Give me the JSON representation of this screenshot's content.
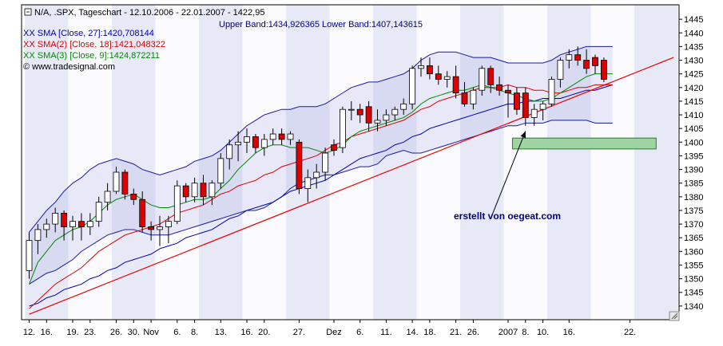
{
  "header": {
    "title": "N/A, .SPX, Tageschart - 12.10.2006 - 22.01.2007 - 1422,95",
    "bands": "Upper Band:1434,926365 Lower Band:1407,143615"
  },
  "legend": [
    {
      "label": "XX SMA [Close, 27]:1420,708144",
      "color": "#0000aa"
    },
    {
      "label": "XX SMA(2) [Close, 18]:1421,048322",
      "color": "#dd0000"
    },
    {
      "label": "XX SMA(3) [Close, 9]:1424,872211",
      "color": "#008800"
    },
    {
      "label": "© www.tradesignal.com",
      "color": "#000000"
    }
  ],
  "annotation": "erstellt von oegeat.com",
  "colors": {
    "up": "#ffffff",
    "down": "#dd0000",
    "band": "#1a1aa0",
    "sma27": "#0000aa",
    "sma18": "#dd0000",
    "sma9": "#008800",
    "trend": "#ee0000",
    "zone": "#9fd3a4"
  },
  "chart_data": {
    "type": "candlestick",
    "ylim": [
      1335,
      1450
    ],
    "y_ticks": [
      1340,
      1345,
      1350,
      1355,
      1360,
      1365,
      1370,
      1375,
      1380,
      1385,
      1390,
      1395,
      1400,
      1405,
      1410,
      1415,
      1420,
      1425,
      1430,
      1435,
      1440,
      1445
    ],
    "x_labels": [
      {
        "label": "12.",
        "i": 0
      },
      {
        "label": "16.",
        "i": 2
      },
      {
        "label": "19.",
        "i": 5
      },
      {
        "label": "23.",
        "i": 7
      },
      {
        "label": "26.",
        "i": 10
      },
      {
        "label": "30.",
        "i": 12
      },
      {
        "label": "Nov",
        "i": 14
      },
      {
        "label": "6.",
        "i": 17
      },
      {
        "label": "8.",
        "i": 19
      },
      {
        "label": "13.",
        "i": 22
      },
      {
        "label": "16.",
        "i": 25
      },
      {
        "label": "20.",
        "i": 27
      },
      {
        "label": "27.",
        "i": 31
      },
      {
        "label": "Dez",
        "i": 35
      },
      {
        "label": "6.",
        "i": 38
      },
      {
        "label": "11.",
        "i": 41
      },
      {
        "label": "14.",
        "i": 44
      },
      {
        "label": "18.",
        "i": 46
      },
      {
        "label": "21.",
        "i": 49
      },
      {
        "label": "26.",
        "i": 51
      },
      {
        "label": "2007",
        "i": 55
      },
      {
        "label": "8.",
        "i": 57
      },
      {
        "label": "10.",
        "i": 59
      },
      {
        "label": "16.",
        "i": 62
      },
      {
        "label": "22.",
        "i": 69
      }
    ],
    "candles": [
      {
        "o": 1353,
        "h": 1367,
        "l": 1350,
        "c": 1364
      },
      {
        "o": 1364,
        "h": 1370,
        "l": 1359,
        "c": 1368
      },
      {
        "o": 1368,
        "h": 1372,
        "l": 1365,
        "c": 1370
      },
      {
        "o": 1370,
        "h": 1376,
        "l": 1367,
        "c": 1374
      },
      {
        "o": 1374,
        "h": 1375,
        "l": 1364,
        "c": 1369
      },
      {
        "o": 1369,
        "h": 1373,
        "l": 1364,
        "c": 1371
      },
      {
        "o": 1371,
        "h": 1374,
        "l": 1364,
        "c": 1369
      },
      {
        "o": 1369,
        "h": 1374,
        "l": 1366,
        "c": 1371
      },
      {
        "o": 1371,
        "h": 1380,
        "l": 1369,
        "c": 1378
      },
      {
        "o": 1378,
        "h": 1385,
        "l": 1375,
        "c": 1382
      },
      {
        "o": 1382,
        "h": 1391,
        "l": 1381,
        "c": 1389
      },
      {
        "o": 1389,
        "h": 1390,
        "l": 1379,
        "c": 1381
      },
      {
        "o": 1381,
        "h": 1383,
        "l": 1377,
        "c": 1379
      },
      {
        "o": 1379,
        "h": 1382,
        "l": 1367,
        "c": 1369
      },
      {
        "o": 1369,
        "h": 1371,
        "l": 1364,
        "c": 1368
      },
      {
        "o": 1368,
        "h": 1373,
        "l": 1362,
        "c": 1369
      },
      {
        "o": 1369,
        "h": 1373,
        "l": 1363,
        "c": 1371
      },
      {
        "o": 1371,
        "h": 1386,
        "l": 1370,
        "c": 1384
      },
      {
        "o": 1384,
        "h": 1385,
        "l": 1378,
        "c": 1380
      },
      {
        "o": 1380,
        "h": 1387,
        "l": 1378,
        "c": 1385
      },
      {
        "o": 1385,
        "h": 1388,
        "l": 1377,
        "c": 1380
      },
      {
        "o": 1380,
        "h": 1386,
        "l": 1377,
        "c": 1385
      },
      {
        "o": 1385,
        "h": 1396,
        "l": 1383,
        "c": 1394
      },
      {
        "o": 1394,
        "h": 1401,
        "l": 1390,
        "c": 1399
      },
      {
        "o": 1399,
        "h": 1404,
        "l": 1393,
        "c": 1400
      },
      {
        "o": 1400,
        "h": 1405,
        "l": 1396,
        "c": 1402
      },
      {
        "o": 1402,
        "h": 1403,
        "l": 1396,
        "c": 1398
      },
      {
        "o": 1398,
        "h": 1403,
        "l": 1395,
        "c": 1401
      },
      {
        "o": 1401,
        "h": 1405,
        "l": 1399,
        "c": 1403
      },
      {
        "o": 1403,
        "h": 1405,
        "l": 1399,
        "c": 1401
      },
      {
        "o": 1401,
        "h": 1404,
        "l": 1399,
        "c": 1403
      },
      {
        "o": 1400,
        "h": 1401,
        "l": 1381,
        "c": 1383
      },
      {
        "o": 1383,
        "h": 1390,
        "l": 1378,
        "c": 1387
      },
      {
        "o": 1387,
        "h": 1392,
        "l": 1383,
        "c": 1389
      },
      {
        "o": 1389,
        "h": 1398,
        "l": 1386,
        "c": 1396
      },
      {
        "o": 1399,
        "h": 1401,
        "l": 1395,
        "c": 1397
      },
      {
        "o": 1398,
        "h": 1413,
        "l": 1396,
        "c": 1412
      },
      {
        "o": 1412,
        "h": 1415,
        "l": 1408,
        "c": 1412
      },
      {
        "o": 1412,
        "h": 1414,
        "l": 1407,
        "c": 1410
      },
      {
        "o": 1413,
        "h": 1415,
        "l": 1404,
        "c": 1407
      },
      {
        "o": 1407,
        "h": 1412,
        "l": 1404,
        "c": 1408
      },
      {
        "o": 1408,
        "h": 1412,
        "l": 1406,
        "c": 1410
      },
      {
        "o": 1410,
        "h": 1413,
        "l": 1408,
        "c": 1412
      },
      {
        "o": 1412,
        "h": 1416,
        "l": 1410,
        "c": 1414
      },
      {
        "o": 1414,
        "h": 1428,
        "l": 1412,
        "c": 1427
      },
      {
        "o": 1427,
        "h": 1431,
        "l": 1424,
        "c": 1428
      },
      {
        "o": 1428,
        "h": 1431,
        "l": 1423,
        "c": 1425
      },
      {
        "o": 1425,
        "h": 1428,
        "l": 1421,
        "c": 1423
      },
      {
        "o": 1423,
        "h": 1426,
        "l": 1420,
        "c": 1424
      },
      {
        "o": 1424,
        "h": 1428,
        "l": 1416,
        "c": 1418
      },
      {
        "o": 1418,
        "h": 1422,
        "l": 1413,
        "c": 1414
      },
      {
        "o": 1414,
        "h": 1420,
        "l": 1412,
        "c": 1419
      },
      {
        "o": 1419,
        "h": 1428,
        "l": 1417,
        "c": 1427
      },
      {
        "o": 1427,
        "h": 1428,
        "l": 1418,
        "c": 1421
      },
      {
        "o": 1421,
        "h": 1424,
        "l": 1417,
        "c": 1419
      },
      {
        "o": 1419,
        "h": 1421,
        "l": 1409,
        "c": 1418
      },
      {
        "o": 1418,
        "h": 1420,
        "l": 1410,
        "c": 1412
      },
      {
        "o": 1418,
        "h": 1420,
        "l": 1406,
        "c": 1409
      },
      {
        "o": 1409,
        "h": 1414,
        "l": 1406,
        "c": 1412
      },
      {
        "o": 1412,
        "h": 1415,
        "l": 1408,
        "c": 1414
      },
      {
        "o": 1414,
        "h": 1424,
        "l": 1413,
        "c": 1423
      },
      {
        "o": 1423,
        "h": 1431,
        "l": 1420,
        "c": 1430
      },
      {
        "o": 1430,
        "h": 1434,
        "l": 1427,
        "c": 1432
      },
      {
        "o": 1432,
        "h": 1435,
        "l": 1428,
        "c": 1430
      },
      {
        "o": 1430,
        "h": 1434,
        "l": 1425,
        "c": 1427
      },
      {
        "o": 1431,
        "h": 1432,
        "l": 1425,
        "c": 1428
      },
      {
        "o": 1430,
        "h": 1431,
        "l": 1422,
        "c": 1423
      }
    ],
    "upper_band": [
      1367,
      1371,
      1375,
      1378,
      1382,
      1385,
      1387,
      1390,
      1392,
      1393,
      1394,
      1393,
      1392,
      1390,
      1389,
      1388,
      1389,
      1390,
      1391,
      1393,
      1394,
      1395,
      1397,
      1400,
      1403,
      1406,
      1408,
      1410,
      1411,
      1412,
      1412,
      1413,
      1413,
      1413,
      1414,
      1416,
      1418,
      1420,
      1421,
      1422,
      1422,
      1423,
      1424,
      1425,
      1427,
      1430,
      1432,
      1433,
      1433,
      1433,
      1432,
      1431,
      1431,
      1431,
      1430,
      1429,
      1429,
      1429,
      1429,
      1429,
      1430,
      1432,
      1433,
      1434,
      1435,
      1435,
      1435,
      1435
    ],
    "lower_band": [
      1348,
      1350,
      1352,
      1353,
      1355,
      1357,
      1360,
      1362,
      1364,
      1366,
      1367,
      1368,
      1368,
      1367,
      1366,
      1366,
      1366,
      1367,
      1368,
      1369,
      1370,
      1371,
      1372,
      1373,
      1374,
      1375,
      1375,
      1376,
      1378,
      1380,
      1383,
      1385,
      1386,
      1387,
      1388,
      1388,
      1389,
      1390,
      1391,
      1391,
      1392,
      1395,
      1396,
      1397,
      1396,
      1396,
      1397,
      1398,
      1399,
      1400,
      1401,
      1402,
      1403,
      1404,
      1405,
      1406,
      1406,
      1407,
      1407,
      1407,
      1408,
      1408,
      1408,
      1408,
      1408,
      1407,
      1407,
      1407
    ],
    "sma27": [
      1340,
      1341,
      1343,
      1344,
      1346,
      1347,
      1348,
      1350,
      1351,
      1353,
      1354,
      1356,
      1357,
      1358,
      1359,
      1361,
      1362,
      1363,
      1365,
      1366,
      1367,
      1368,
      1370,
      1372,
      1373,
      1375,
      1376,
      1377,
      1378,
      1380,
      1382,
      1383,
      1384,
      1385,
      1386,
      1388,
      1390,
      1392,
      1394,
      1395,
      1396,
      1397,
      1399,
      1400,
      1402,
      1403,
      1405,
      1406,
      1407,
      1408,
      1409,
      1410,
      1411,
      1412,
      1413,
      1414,
      1414,
      1415,
      1415,
      1416,
      1416,
      1416,
      1417,
      1418,
      1419,
      1419,
      1420,
      1421
    ],
    "sma18": [
      1339,
      1342,
      1345,
      1348,
      1350,
      1352,
      1354,
      1357,
      1360,
      1362,
      1364,
      1366,
      1367,
      1368,
      1369,
      1370,
      1372,
      1374,
      1375,
      1376,
      1377,
      1379,
      1381,
      1382,
      1384,
      1385,
      1386,
      1388,
      1389,
      1391,
      1392,
      1393,
      1394,
      1395,
      1397,
      1399,
      1400,
      1402,
      1403,
      1404,
      1405,
      1406,
      1407,
      1408,
      1410,
      1412,
      1413,
      1415,
      1416,
      1417,
      1418,
      1419,
      1420,
      1420,
      1420,
      1421,
      1420,
      1420,
      1419,
      1419,
      1418,
      1418,
      1419,
      1420,
      1420,
      1421,
      1421,
      1421
    ],
    "sma9": [
      1348,
      1356,
      1360,
      1364,
      1366,
      1368,
      1369,
      1371,
      1374,
      1377,
      1379,
      1380,
      1381,
      1379,
      1377,
      1376,
      1376,
      1377,
      1378,
      1379,
      1379,
      1380,
      1383,
      1386,
      1390,
      1393,
      1396,
      1398,
      1399,
      1399,
      1398,
      1398,
      1398,
      1397,
      1396,
      1397,
      1399,
      1402,
      1404,
      1405,
      1406,
      1407,
      1408,
      1409,
      1411,
      1414,
      1416,
      1417,
      1418,
      1419,
      1419,
      1420,
      1421,
      1420,
      1419,
      1418,
      1417,
      1416,
      1415,
      1415,
      1416,
      1418,
      1420,
      1422,
      1424,
      1425,
      1425,
      1425
    ],
    "trendline": {
      "from": {
        "i": 0,
        "y": 1337
      },
      "to": {
        "i": 74,
        "y": 1431
      }
    },
    "zone": {
      "i_from": 56,
      "i_to": 72,
      "y_from": 1397.5,
      "y_to": 1401.5
    },
    "arrow": {
      "from": {
        "i": 53,
        "y": 1372
      },
      "to": {
        "i": 57,
        "y": 1404
      }
    }
  }
}
